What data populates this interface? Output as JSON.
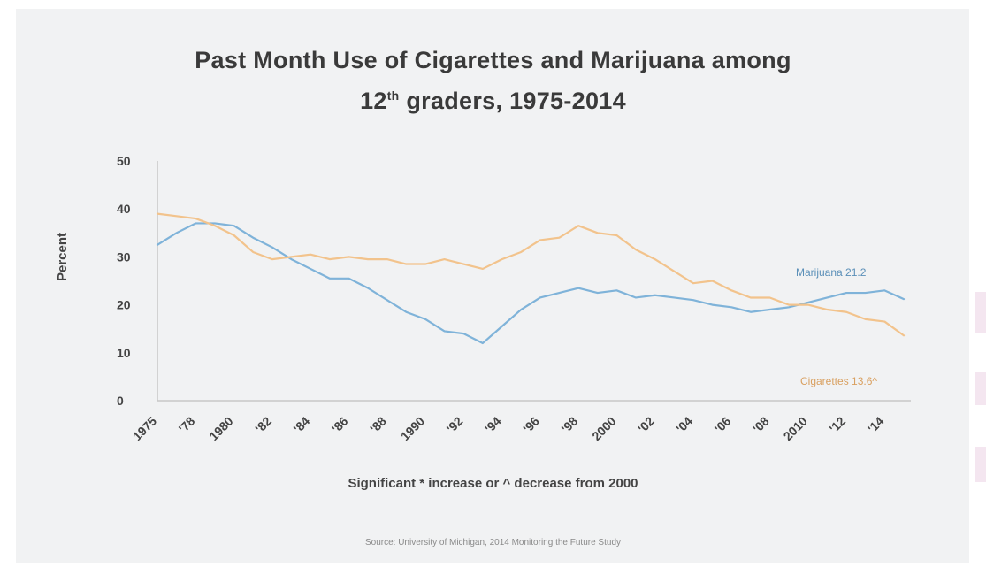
{
  "title_line1": "Past Month Use of Cigarettes and Marijuana among",
  "title_line2_pre": "12",
  "title_line2_sup": "th",
  "title_line2_post": " graders, 1975-2014",
  "footnote": "Significant * increase or ^ decrease from 2000",
  "source": "Source: University of Michigan, 2014 Monitoring the Future Study",
  "chart_data": {
    "type": "line",
    "title": "Past Month Use of Cigarettes and Marijuana among 12th graders, 1975-2014",
    "ylabel": "Percent",
    "xlabel": "Significant * increase or ^ decrease from 2000",
    "ylim": [
      0,
      50
    ],
    "yticks": [
      0,
      10,
      20,
      30,
      40,
      50
    ],
    "x": [
      1975,
      1976,
      1977,
      1978,
      1979,
      1980,
      1981,
      1982,
      1983,
      1984,
      1985,
      1986,
      1987,
      1988,
      1989,
      1990,
      1991,
      1992,
      1993,
      1994,
      1995,
      1996,
      1997,
      1998,
      1999,
      2000,
      2001,
      2002,
      2003,
      2004,
      2005,
      2006,
      2007,
      2008,
      2009,
      2010,
      2011,
      2012,
      2013,
      2014
    ],
    "xtick_labels": [
      "1975",
      "'78",
      "1980",
      "'82",
      "'84",
      "'86",
      "'88",
      "1990",
      "'92",
      "'94",
      "'96",
      "'98",
      "2000",
      "'02",
      "'04",
      "'06",
      "'08",
      "2010",
      "'12",
      "'14"
    ],
    "grid": false,
    "series": [
      {
        "name": "Marijuana",
        "end_label": "Marijuana 21.2",
        "color": "#7fb3d9",
        "values": [
          32.5,
          35.0,
          37.0,
          37.0,
          36.5,
          34.0,
          32.0,
          29.5,
          27.5,
          25.5,
          25.5,
          23.5,
          21.0,
          18.5,
          17.0,
          14.5,
          14.0,
          12.0,
          15.5,
          19.0,
          21.5,
          22.5,
          23.5,
          22.5,
          23.0,
          21.5,
          22.0,
          21.5,
          21.0,
          20.0,
          19.5,
          18.5,
          19.0,
          19.5,
          20.5,
          21.5,
          22.5,
          22.5,
          23.0,
          21.2
        ]
      },
      {
        "name": "Cigarettes",
        "end_label": "Cigarettes 13.6^",
        "color": "#f2c38c",
        "values": [
          39.0,
          38.5,
          38.0,
          36.5,
          34.5,
          31.0,
          29.5,
          30.0,
          30.5,
          29.5,
          30.0,
          29.5,
          29.5,
          28.5,
          28.5,
          29.5,
          28.5,
          27.5,
          29.5,
          31.0,
          33.5,
          34.0,
          36.5,
          35.0,
          34.5,
          31.5,
          29.5,
          27.0,
          24.5,
          25.0,
          23.0,
          21.5,
          21.5,
          20.0,
          20.0,
          19.0,
          18.5,
          17.0,
          16.5,
          13.6
        ]
      }
    ]
  }
}
